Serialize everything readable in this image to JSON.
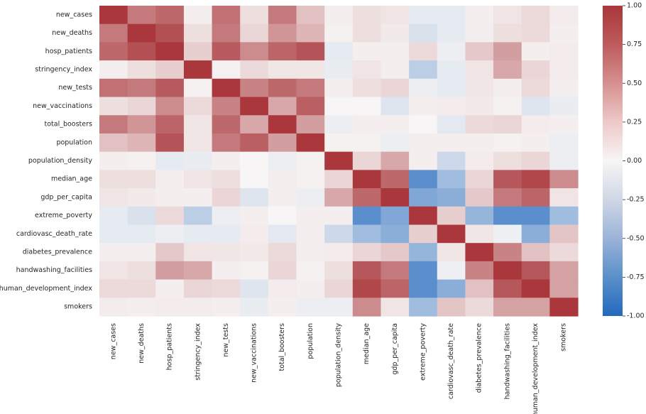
{
  "chart_data": {
    "type": "heatmap",
    "title": "",
    "xlabel": "",
    "ylabel": "",
    "variables": [
      "new_cases",
      "new_deaths",
      "hosp_patients",
      "stringency_index",
      "new_tests",
      "new_vaccinations",
      "total_boosters",
      "population",
      "population_density",
      "median_age",
      "gdp_per_capita",
      "extreme_poverty",
      "cardiovasc_death_rate",
      "diabetes_prevalence",
      "handwashing_facilities",
      "human_development_index",
      "smokers"
    ],
    "values": [
      [
        1.0,
        0.6,
        0.7,
        0.02,
        0.65,
        0.08,
        0.6,
        0.22,
        0.02,
        0.08,
        0.06,
        -0.05,
        -0.05,
        0.02,
        0.06,
        0.1,
        0.03
      ],
      [
        0.6,
        1.0,
        0.85,
        0.08,
        0.6,
        0.12,
        0.45,
        0.28,
        0.01,
        0.08,
        0.04,
        -0.1,
        -0.05,
        0.02,
        0.08,
        0.1,
        0.02
      ],
      [
        0.7,
        0.85,
        1.0,
        0.15,
        0.78,
        0.5,
        0.72,
        0.82,
        -0.05,
        0.02,
        0.02,
        0.1,
        -0.03,
        0.18,
        0.4,
        0.02,
        0.03
      ],
      [
        0.02,
        0.08,
        0.15,
        1.0,
        0.01,
        0.1,
        0.05,
        0.05,
        -0.04,
        0.06,
        0.02,
        -0.22,
        -0.05,
        0.06,
        0.35,
        0.12,
        0.03
      ],
      [
        0.65,
        0.6,
        0.78,
        0.01,
        1.0,
        0.55,
        0.7,
        0.6,
        0.02,
        0.08,
        0.12,
        -0.03,
        -0.05,
        0.05,
        0.02,
        0.1,
        0.02
      ],
      [
        0.08,
        0.12,
        0.5,
        0.1,
        0.55,
        1.0,
        0.35,
        0.75,
        0.0,
        0.0,
        -0.08,
        0.02,
        0.03,
        0.04,
        0.01,
        -0.08,
        -0.04
      ],
      [
        0.6,
        0.45,
        0.72,
        0.05,
        0.7,
        0.35,
        1.0,
        0.4,
        -0.03,
        0.02,
        0.02,
        0.0,
        -0.06,
        0.1,
        0.12,
        0.03,
        0.02
      ],
      [
        0.22,
        0.28,
        0.82,
        0.05,
        0.6,
        0.75,
        0.4,
        1.0,
        0.01,
        0.01,
        -0.03,
        0.02,
        0.02,
        0.02,
        0.01,
        0.02,
        -0.03
      ],
      [
        0.02,
        0.01,
        -0.05,
        -0.04,
        0.02,
        0.0,
        -0.03,
        0.01,
        1.0,
        0.12,
        0.35,
        0.02,
        -0.15,
        0.03,
        0.08,
        0.12,
        -0.03
      ],
      [
        0.08,
        0.08,
        0.02,
        0.06,
        0.08,
        0.0,
        0.02,
        0.01,
        0.12,
        1.0,
        0.7,
        -0.7,
        -0.35,
        0.12,
        0.8,
        0.9,
        0.5
      ],
      [
        0.06,
        0.04,
        0.02,
        0.02,
        0.12,
        -0.08,
        0.02,
        -0.03,
        0.35,
        0.7,
        1.0,
        -0.5,
        -0.45,
        0.18,
        0.6,
        0.72,
        0.06
      ],
      [
        -0.05,
        -0.1,
        0.1,
        -0.22,
        -0.03,
        0.02,
        0.0,
        0.02,
        0.02,
        -0.7,
        -0.5,
        1.0,
        0.15,
        -0.4,
        -0.7,
        -0.7,
        -0.35
      ],
      [
        -0.05,
        -0.05,
        -0.03,
        -0.05,
        -0.05,
        0.03,
        -0.06,
        0.02,
        -0.15,
        -0.35,
        -0.45,
        0.15,
        1.0,
        0.05,
        -0.02,
        -0.45,
        0.2
      ],
      [
        0.02,
        0.02,
        0.18,
        0.06,
        0.05,
        0.04,
        0.1,
        0.02,
        0.03,
        0.12,
        0.18,
        -0.4,
        0.05,
        1.0,
        0.55,
        0.22,
        0.1
      ],
      [
        0.06,
        0.08,
        0.4,
        0.35,
        0.02,
        0.01,
        0.12,
        0.01,
        0.08,
        0.8,
        0.6,
        -0.7,
        -0.02,
        0.55,
        1.0,
        0.8,
        0.38
      ],
      [
        0.1,
        0.1,
        0.02,
        0.12,
        0.1,
        -0.08,
        0.03,
        0.02,
        0.12,
        0.9,
        0.72,
        -0.7,
        -0.45,
        0.22,
        0.8,
        1.0,
        0.38
      ],
      [
        0.03,
        0.02,
        0.03,
        0.03,
        0.02,
        -0.04,
        0.02,
        -0.03,
        -0.03,
        0.5,
        0.06,
        -0.35,
        0.2,
        0.1,
        0.38,
        0.38,
        1.0
      ]
    ],
    "colorbar": {
      "range": [
        -1.0,
        1.0
      ],
      "ticks": [
        "1.00",
        "0.75",
        "0.50",
        "0.25",
        "0.00",
        "-0.25",
        "-0.50",
        "-0.75",
        "-1.00"
      ],
      "colormap": "vlag",
      "colors": {
        "low": "#2369bd",
        "mid": "#f7f5f5",
        "high": "#a9373b"
      }
    },
    "grid": false,
    "legend": "colorbar right"
  }
}
